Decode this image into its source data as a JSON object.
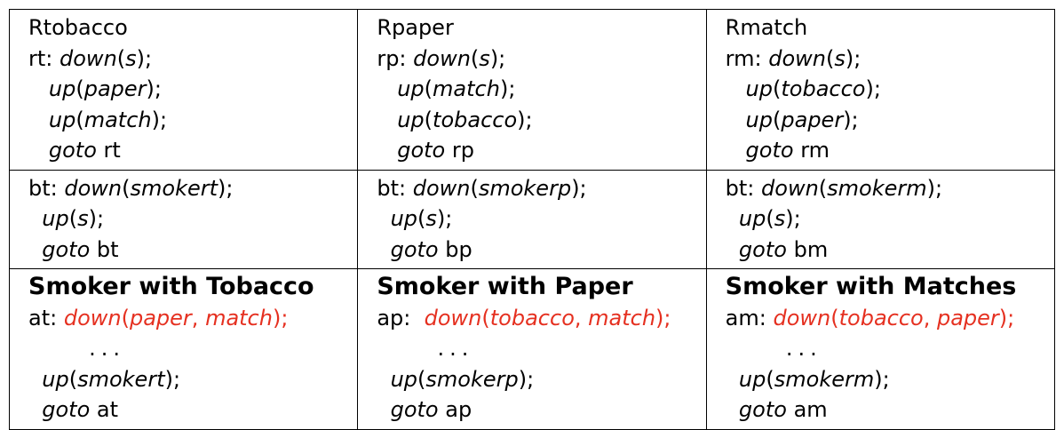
{
  "columns": [
    {
      "title": "Rtobacco",
      "release": {
        "label": "rt:",
        "down_fn": "down",
        "down_arg": "s",
        "up1_fn": "up",
        "up1_arg": "paper",
        "up2_fn": "up",
        "up2_arg": "match",
        "goto_kw": "goto",
        "goto_target": "rt"
      },
      "bridge": {
        "label": "bt:",
        "down_fn": "down",
        "down_arg": "smokert",
        "up_fn": "up",
        "up_arg": "s",
        "goto_kw": "goto",
        "goto_target": "bt"
      },
      "smoker": {
        "heading": "Smoker with Tobacco",
        "label": "at:",
        "down_fn": "down",
        "down_arg1": "paper",
        "down_arg2": "match",
        "dots": "...",
        "up_fn": "up",
        "up_arg": "smokert",
        "goto_kw": "goto",
        "goto_target": "at"
      }
    },
    {
      "title": "Rpaper",
      "release": {
        "label": "rp:",
        "down_fn": "down",
        "down_arg": "s",
        "up1_fn": "up",
        "up1_arg": "match",
        "up2_fn": "up",
        "up2_arg": "tobacco",
        "goto_kw": "goto",
        "goto_target": "rp"
      },
      "bridge": {
        "label": "bt:",
        "down_fn": "down",
        "down_arg": "smokerp",
        "up_fn": "up",
        "up_arg": "s",
        "goto_kw": "goto",
        "goto_target": "bp"
      },
      "smoker": {
        "heading": "Smoker with Paper",
        "label": "ap:",
        "down_fn": "down",
        "down_arg1": "tobacco",
        "down_arg2": "match",
        "dots": "...",
        "up_fn": "up",
        "up_arg": "smokerp",
        "goto_kw": "goto",
        "goto_target": "ap"
      }
    },
    {
      "title": "Rmatch",
      "release": {
        "label": "rm:",
        "down_fn": "down",
        "down_arg": "s",
        "up1_fn": "up",
        "up1_arg": "tobacco",
        "up2_fn": "up",
        "up2_arg": "paper",
        "goto_kw": "goto",
        "goto_target": "rm"
      },
      "bridge": {
        "label": "bt:",
        "down_fn": "down",
        "down_arg": "smokerm",
        "up_fn": "up",
        "up_arg": "s",
        "goto_kw": "goto",
        "goto_target": "bm"
      },
      "smoker": {
        "heading": "Smoker with Matches",
        "label": "am:",
        "down_fn": "down",
        "down_arg1": "tobacco",
        "down_arg2": "paper",
        "dots": "...",
        "up_fn": "up",
        "up_arg": "smokerm",
        "goto_kw": "goto",
        "goto_target": "am"
      }
    }
  ],
  "colors": {
    "highlight": "#e53020",
    "text": "#000000",
    "border": "#000000"
  }
}
